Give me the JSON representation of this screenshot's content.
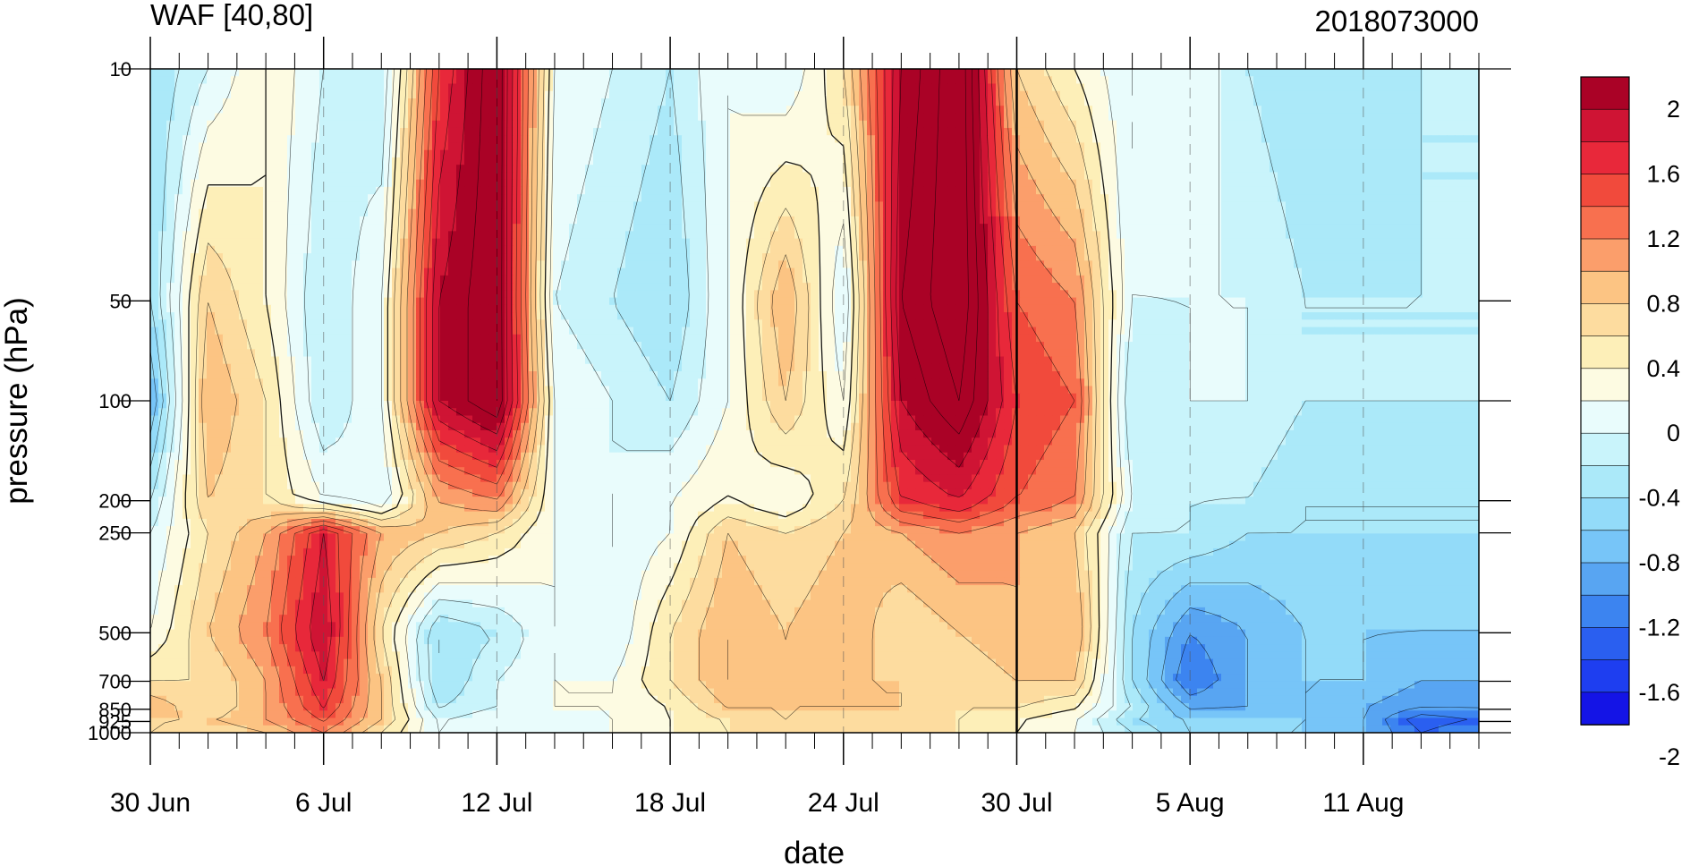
{
  "chart_data": {
    "type": "heatmap",
    "subtype": "filled-contour",
    "title": "WAF [40,80]",
    "right_title": "2018073000",
    "xlabel": "date",
    "ylabel": "pressure (hPa)",
    "y_scale": "log",
    "y_reversed": true,
    "ylim": [
      1000,
      10
    ],
    "xlim": [
      "2018-06-30",
      "2018-08-15"
    ],
    "x_ticks": [
      "30 Jun",
      "6 Jul",
      "12 Jul",
      "18 Jul",
      "24 Jul",
      "30 Jul",
      "5 Aug",
      "11 Aug"
    ],
    "y_ticks": [
      "10",
      "50",
      "100",
      "200",
      "250",
      "500",
      "700",
      "850",
      "925",
      "1000"
    ],
    "reference_date": "2018-07-30",
    "colorbar": {
      "levels": [
        -2.2,
        -2,
        -1.8,
        -1.6,
        -1.4,
        -1.2,
        -1,
        -0.8,
        -0.6,
        -0.4,
        -0.2,
        0,
        0.2,
        0.4,
        0.6,
        0.8,
        1,
        1.2,
        1.4,
        1.6,
        1.8,
        2,
        2.2
      ],
      "labels": [
        "2",
        "1.6",
        "1.2",
        "0.8",
        "0.4",
        "0",
        "-0.4",
        "-0.8",
        "-1.2",
        "-1.6",
        "-2"
      ],
      "colors": [
        "#1414e6",
        "#1e3ef0",
        "#2a5ff0",
        "#3c84f0",
        "#58a5f2",
        "#77c5f8",
        "#93dbf9",
        "#abe9f9",
        "#c9f4fb",
        "#e9fcfc",
        "#fdfbe2",
        "#fdefb8",
        "#fddc9f",
        "#fcc483",
        "#fb9e6b",
        "#f8704f",
        "#f14a3c",
        "#e8283a",
        "#cf1434",
        "#aa0226"
      ]
    },
    "grid_dates": [
      "2018-06-30",
      "2018-07-02",
      "2018-07-04",
      "2018-07-06",
      "2018-07-08",
      "2018-07-10",
      "2018-07-12",
      "2018-07-14",
      "2018-07-16",
      "2018-07-18",
      "2018-07-20",
      "2018-07-22",
      "2018-07-24",
      "2018-07-26",
      "2018-07-28",
      "2018-07-30",
      "2018-08-01",
      "2018-08-03",
      "2018-08-05",
      "2018-08-07",
      "2018-08-09",
      "2018-08-11",
      "2018-08-13",
      "2018-08-15"
    ],
    "grid_levels": [
      10,
      50,
      100,
      200,
      250,
      500,
      700,
      850,
      925,
      1000
    ],
    "values": [
      [
        -0.8,
        -0.4,
        0.0,
        -0.4,
        -0.6,
        1.2,
        2.0,
        -0.2,
        -0.4,
        -0.6,
        -0.2,
        -0.4,
        0.2,
        1.6,
        2.2,
        0.4,
        0.0,
        -0.4,
        -0.2,
        -0.6,
        -0.8,
        -0.8,
        -0.6,
        -0.6
      ],
      [
        -0.8,
        0.4,
        0.0,
        -0.6,
        -0.2,
        1.6,
        2.0,
        -0.4,
        -0.6,
        -0.8,
        -0.2,
        0.6,
        -0.4,
        1.8,
        2.2,
        1.0,
        0.8,
        -0.4,
        -0.4,
        -0.4,
        -0.6,
        -0.6,
        -0.6,
        -0.6
      ],
      [
        -1.2,
        0.6,
        0.2,
        -0.6,
        -0.2,
        1.6,
        2.0,
        -0.2,
        -0.4,
        -0.6,
        -0.2,
        0.4,
        -0.2,
        1.6,
        2.0,
        1.2,
        1.0,
        -0.6,
        -0.4,
        -0.4,
        -0.6,
        -0.6,
        -0.6,
        -0.6
      ],
      [
        -0.6,
        0.4,
        0.2,
        -0.2,
        -0.4,
        0.6,
        0.8,
        -0.2,
        -0.4,
        -0.2,
        0.0,
        -0.2,
        0.2,
        1.2,
        1.4,
        1.0,
        0.8,
        -0.4,
        -0.6,
        -0.6,
        -0.8,
        -0.8,
        -0.8,
        -0.8
      ],
      [
        -0.4,
        0.2,
        0.6,
        1.4,
        0.6,
        0.4,
        0.2,
        -0.2,
        -0.4,
        -0.2,
        0.4,
        0.2,
        0.4,
        0.6,
        0.8,
        0.6,
        0.4,
        -0.6,
        -0.6,
        -0.8,
        -0.8,
        -0.8,
        -0.8,
        -0.8
      ],
      [
        -0.2,
        0.4,
        0.8,
        1.6,
        0.2,
        -0.8,
        -0.6,
        -0.2,
        -0.4,
        0.2,
        0.6,
        0.4,
        0.6,
        0.2,
        0.4,
        0.6,
        0.6,
        -0.8,
        -1.4,
        -1.2,
        -1.0,
        -1.0,
        -1.0,
        -1.0
      ],
      [
        0.2,
        0.2,
        0.6,
        1.4,
        0.4,
        -0.8,
        -0.4,
        -0.2,
        -0.2,
        0.2,
        0.6,
        0.4,
        0.4,
        0.4,
        0.2,
        0.4,
        0.4,
        -0.8,
        -1.6,
        -1.2,
        -1.0,
        -1.0,
        -1.2,
        -1.2
      ],
      [
        0.6,
        0.2,
        0.6,
        1.2,
        0.4,
        -0.6,
        -0.4,
        -0.2,
        -0.2,
        0.0,
        0.4,
        0.4,
        0.4,
        0.4,
        0.2,
        0.2,
        0.0,
        -0.6,
        -1.2,
        -1.2,
        -1.0,
        -1.2,
        -1.4,
        -1.4
      ],
      [
        0.4,
        0.4,
        0.6,
        1.0,
        0.4,
        -0.4,
        -0.2,
        -0.4,
        -0.2,
        0.0,
        0.2,
        0.4,
        0.2,
        0.2,
        0.2,
        0.0,
        -0.2,
        -0.8,
        -1.0,
        -1.0,
        -1.0,
        -1.2,
        -1.8,
        -1.6
      ],
      [
        0.4,
        0.2,
        0.4,
        0.8,
        0.2,
        -0.4,
        -0.2,
        -0.4,
        -0.2,
        0.0,
        0.2,
        0.2,
        0.2,
        0.2,
        0.2,
        0.0,
        -0.2,
        -0.6,
        -1.0,
        -1.0,
        -1.0,
        -1.2,
        -1.6,
        -1.4
      ]
    ]
  }
}
